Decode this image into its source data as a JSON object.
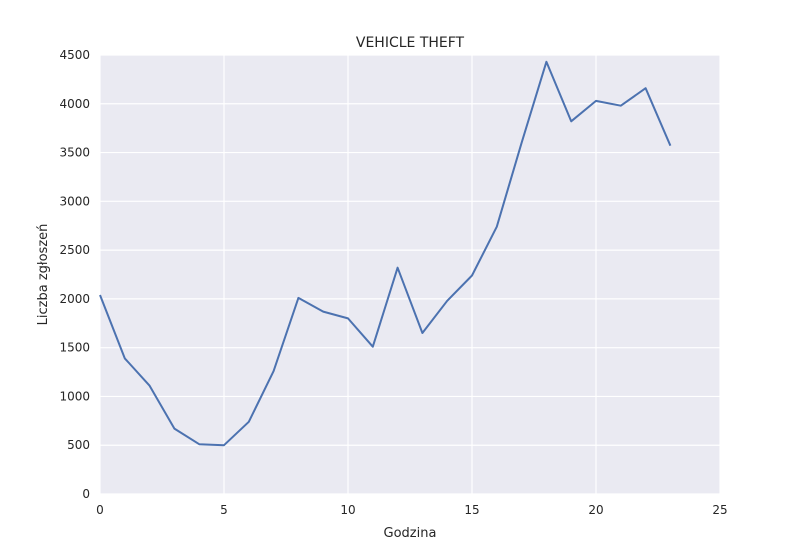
{
  "chart_data": {
    "type": "line",
    "title": "VEHICLE THEFT",
    "xlabel": "Godzina",
    "ylabel": "Liczba zgłoszeń",
    "xlim": [
      0,
      25
    ],
    "ylim": [
      0,
      4500
    ],
    "xticks": [
      0,
      5,
      10,
      15,
      20,
      25
    ],
    "yticks": [
      0,
      500,
      1000,
      1500,
      2000,
      2500,
      3000,
      3500,
      4000,
      4500
    ],
    "grid": true,
    "series": [
      {
        "name": "VEHICLE THEFT",
        "color": "#4c72b0",
        "x": [
          0,
          1,
          2,
          3,
          4,
          5,
          6,
          7,
          8,
          9,
          10,
          11,
          12,
          13,
          14,
          15,
          16,
          17,
          18,
          19,
          20,
          21,
          22,
          23
        ],
        "values": [
          2040,
          1390,
          1110,
          670,
          510,
          500,
          740,
          1260,
          2010,
          1870,
          1800,
          1510,
          2320,
          1650,
          1980,
          2240,
          2740,
          3600,
          4430,
          3820,
          4030,
          3980,
          4160,
          3570
        ]
      }
    ]
  },
  "colors": {
    "plot_background": "#eaeaf2",
    "grid": "#ffffff",
    "text": "#262626"
  }
}
